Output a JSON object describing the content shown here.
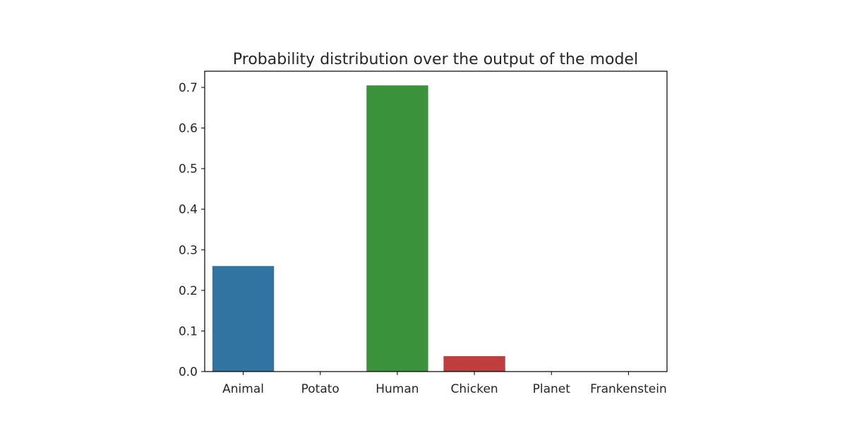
{
  "chart_data": {
    "type": "bar",
    "title": "Probability distribution over the output of the model",
    "xlabel": "",
    "ylabel": "",
    "categories": [
      "Animal",
      "Potato",
      "Human",
      "Chicken",
      "Planet",
      "Frankenstein"
    ],
    "values": [
      0.26,
      0.0,
      0.705,
      0.038,
      0.0,
      0.0
    ],
    "colors": [
      "#3274a1",
      "#e1812c",
      "#3a923a",
      "#c03d3e",
      "#9372b2",
      "#845b53"
    ],
    "ylim": [
      0,
      0.74
    ],
    "yticks": [
      0.0,
      0.1,
      0.2,
      0.3,
      0.4,
      0.5,
      0.6,
      0.7
    ],
    "ytick_labels": [
      "0.0",
      "0.1",
      "0.2",
      "0.3",
      "0.4",
      "0.5",
      "0.6",
      "0.7"
    ],
    "grid": false,
    "legend": "none"
  }
}
